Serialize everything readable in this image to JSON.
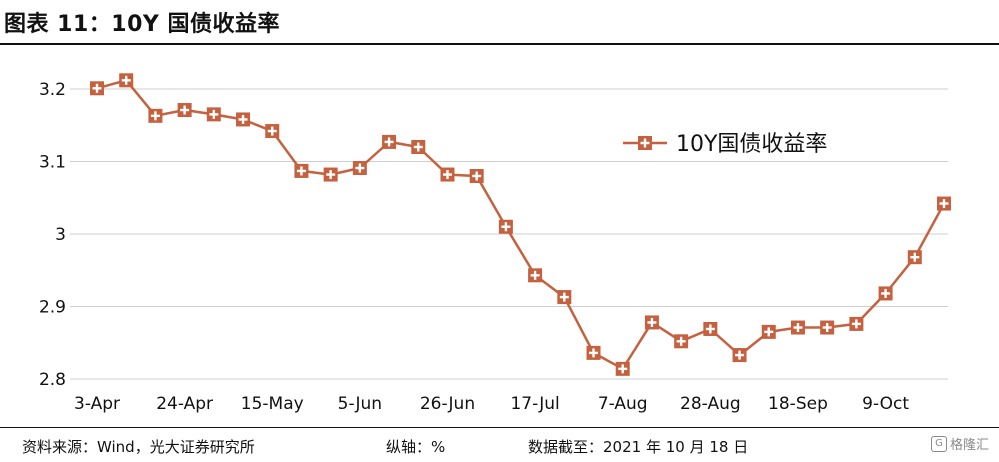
{
  "title": "图表 11：10Y 国债收益率",
  "footer": {
    "source": "资料来源：Wind，光大证券研究所",
    "axis_note": "纵轴：%",
    "date": "数据截至：2021 年 10 月 18 日"
  },
  "watermark": "格隆汇",
  "watermark_icon": "G",
  "colors": {
    "series": "#c5613f",
    "grid": "#cfcfcf",
    "text": "#111111"
  },
  "chart_data": {
    "type": "line",
    "title": "",
    "xlabel": "",
    "ylabel": "",
    "ylim": [
      2.8,
      3.2
    ],
    "yticks": [
      2.8,
      2.9,
      3,
      3.1,
      3.2
    ],
    "ytick_labels": [
      "2.8",
      "2.9",
      "3",
      "3.1",
      "3.2"
    ],
    "grid": "horizontal",
    "legend_position": "upper-right-inside",
    "marker": "square-cross",
    "xtick_labels": [
      "3-Apr",
      "24-Apr",
      "15-May",
      "5-Jun",
      "26-Jun",
      "17-Jul",
      "7-Aug",
      "28-Aug",
      "18-Sep",
      "9-Oct"
    ],
    "xtick_indices": [
      0,
      3,
      6,
      9,
      12,
      15,
      18,
      21,
      24,
      27
    ],
    "series": [
      {
        "name": "10Y国债收益率",
        "values": [
          3.201,
          3.212,
          3.163,
          3.171,
          3.165,
          3.158,
          3.142,
          3.087,
          3.082,
          3.091,
          3.127,
          3.12,
          3.082,
          3.08,
          3.01,
          2.943,
          2.913,
          2.836,
          2.814,
          2.878,
          2.852,
          2.869,
          2.833,
          2.865,
          2.871,
          2.871,
          2.876,
          2.918,
          2.968,
          3.042
        ]
      }
    ]
  }
}
